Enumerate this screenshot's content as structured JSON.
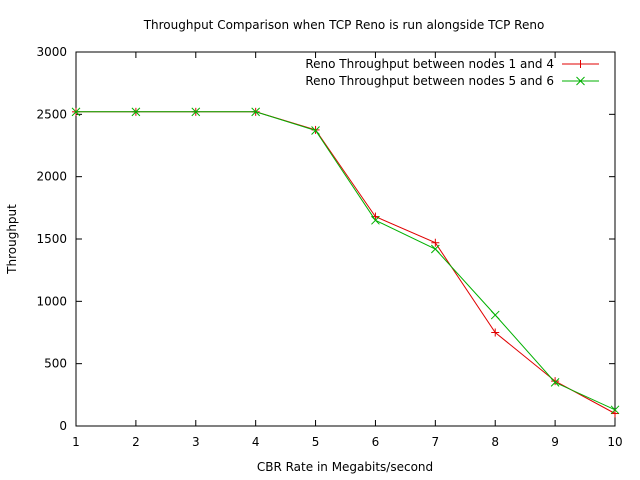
{
  "chart_data": {
    "type": "line",
    "title": "Throughput Comparison when TCP Reno is run alongside TCP Reno",
    "xlabel": "CBR Rate in Megabits/second",
    "ylabel": "Throughput",
    "xlim": [
      1,
      10
    ],
    "ylim": [
      0,
      3000
    ],
    "xticks": [
      1,
      2,
      3,
      4,
      5,
      6,
      7,
      8,
      9,
      10
    ],
    "yticks": [
      0,
      500,
      1000,
      1500,
      2000,
      2500,
      3000
    ],
    "grid": false,
    "legend_position": "top-right",
    "x": [
      1,
      2,
      3,
      4,
      5,
      6,
      7,
      8,
      9,
      10
    ],
    "series": [
      {
        "name": "Reno Throughput between nodes 1 and 4",
        "color": "#e00000",
        "marker": "plus",
        "values": [
          2520,
          2520,
          2520,
          2520,
          2375,
          1680,
          1470,
          750,
          360,
          100
        ]
      },
      {
        "name": "Reno Throughput between nodes 5 and 6",
        "color": "#00b000",
        "marker": "cross",
        "values": [
          2520,
          2520,
          2520,
          2520,
          2370,
          1650,
          1420,
          890,
          350,
          130
        ]
      }
    ]
  }
}
